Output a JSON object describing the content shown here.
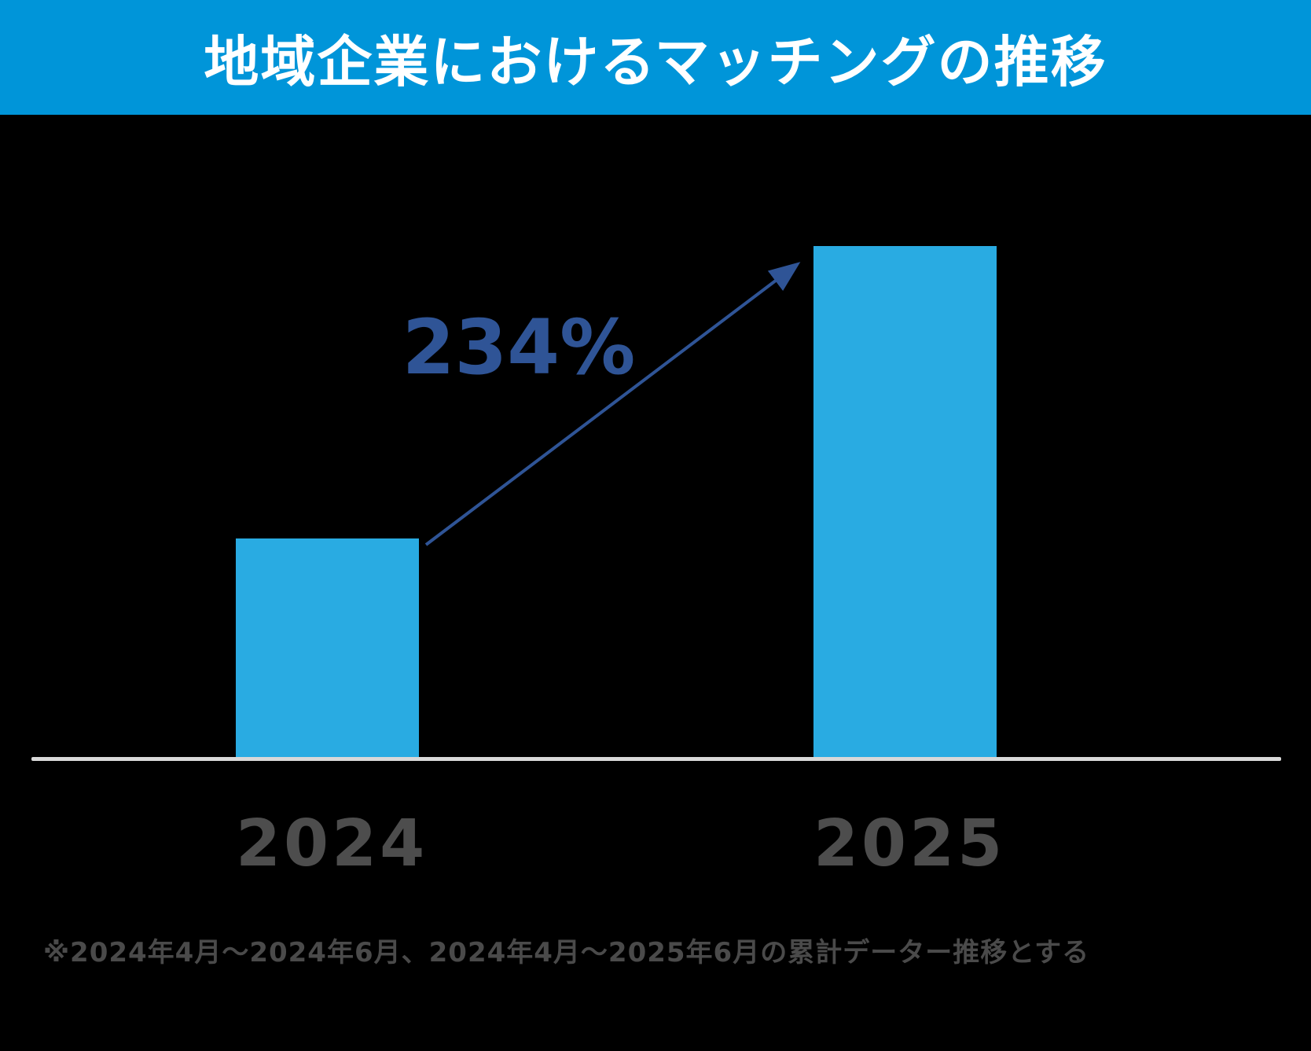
{
  "header": {
    "title": "地域企業におけるマッチングの推移"
  },
  "chart_data": {
    "type": "bar",
    "title": "地域企業におけるマッチングの推移",
    "categories": [
      "2024",
      "2025"
    ],
    "values": [
      100,
      234
    ],
    "annotation": "234%",
    "xlabel": "",
    "ylabel": "",
    "ylim": [
      0,
      250
    ],
    "grid": false,
    "legend": "none",
    "bar_color": "#29ABE2",
    "annotation_arrow": "from top of 2024 bar to top of 2025 bar"
  },
  "footnote": "※2024年4月～2024年6月、2024年4月～2025年6月の累計データー推移とする",
  "colors": {
    "header_bg": "#0095D9",
    "bar": "#29ABE2",
    "arrow": "#2F5496",
    "annotation": "#2F5496",
    "axis_line": "#D9D9D9",
    "tick_label": "#4D4D4D",
    "background": "#000000",
    "title_text": "#FFFFFF",
    "footnote": "#4A4A4A"
  }
}
